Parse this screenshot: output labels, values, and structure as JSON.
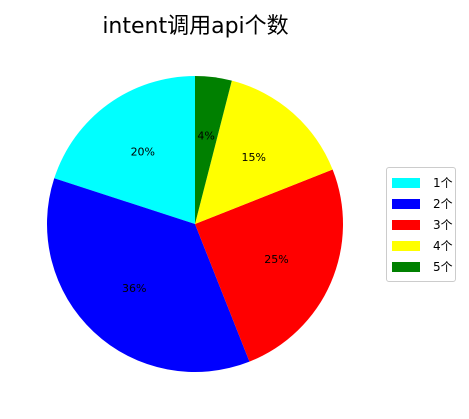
{
  "chart_data": {
    "type": "pie",
    "title": "intent调用api个数",
    "categories": [
      "1个",
      "2个",
      "3个",
      "4个",
      "5个"
    ],
    "values": [
      20,
      36,
      25,
      15,
      4
    ],
    "slice_labels": [
      "20%",
      "36%",
      "25%",
      "15%",
      "4%"
    ],
    "colors": [
      "#00ffff",
      "#0000ff",
      "#ff0000",
      "#ffff00",
      "#008000"
    ],
    "start_angle_deg": 90,
    "direction": "counterclockwise",
    "legend_position": "right"
  },
  "legend": {
    "items": [
      {
        "label": "1个",
        "color": "#00ffff"
      },
      {
        "label": "2个",
        "color": "#0000ff"
      },
      {
        "label": "3个",
        "color": "#ff0000"
      },
      {
        "label": "4个",
        "color": "#ffff00"
      },
      {
        "label": "5个",
        "color": "#008000"
      }
    ]
  }
}
